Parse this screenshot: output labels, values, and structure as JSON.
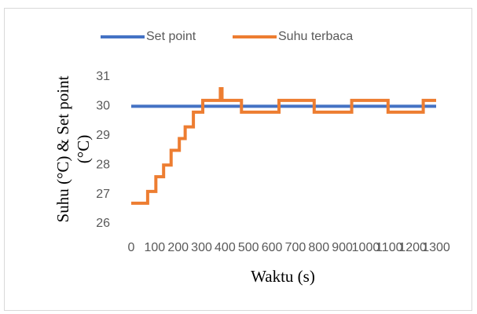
{
  "chart_data": {
    "type": "line",
    "x_label": "Waktu (s)",
    "y_label": [
      "Suhu (°C) & Set point",
      "(°C)"
    ],
    "xlim": [
      0,
      1300
    ],
    "xticks": [
      0,
      100,
      200,
      300,
      400,
      500,
      600,
      700,
      800,
      900,
      1000,
      1100,
      1200,
      1300
    ],
    "ylim": [
      26,
      31
    ],
    "yticks": [
      26,
      27,
      28,
      29,
      30,
      31
    ],
    "grid": false,
    "legend": "top",
    "series": [
      {
        "name": "Set point",
        "color": "#4472c4",
        "x": [
          0,
          1300
        ],
        "values": [
          30,
          30
        ]
      },
      {
        "name": "Suhu terbaca",
        "color": "#ed7d31",
        "x": [
          0,
          70,
          70,
          105,
          105,
          138,
          138,
          170,
          170,
          205,
          205,
          230,
          230,
          265,
          265,
          305,
          305,
          380,
          380,
          387,
          387,
          470,
          470,
          630,
          630,
          780,
          780,
          940,
          940,
          1095,
          1095,
          1245,
          1245,
          1300
        ],
        "values": [
          26.7,
          26.7,
          27.1,
          27.1,
          27.6,
          27.6,
          28.0,
          28.0,
          28.5,
          28.5,
          28.9,
          28.9,
          29.3,
          29.3,
          29.8,
          29.8,
          30.2,
          30.2,
          30.6,
          30.6,
          30.2,
          30.2,
          29.8,
          29.8,
          30.2,
          30.2,
          29.8,
          29.8,
          30.2,
          30.2,
          29.8,
          29.8,
          30.2,
          30.2
        ]
      }
    ]
  }
}
